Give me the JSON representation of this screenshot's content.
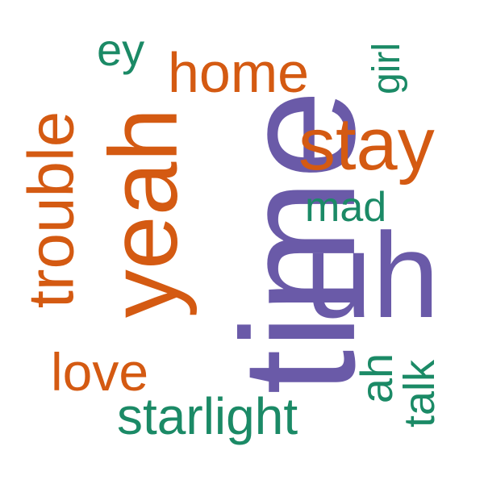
{
  "word_cloud": {
    "colors": {
      "purple": "#6a5aa8",
      "orange": "#d45a12",
      "green": "#1b8a66"
    },
    "words": [
      {
        "text": "time",
        "color": "purple",
        "orientation": "vertical"
      },
      {
        "text": "uh",
        "color": "purple",
        "orientation": "horizontal"
      },
      {
        "text": "yeah",
        "color": "orange",
        "orientation": "vertical"
      },
      {
        "text": "trouble",
        "color": "orange",
        "orientation": "vertical"
      },
      {
        "text": "stay",
        "color": "orange",
        "orientation": "horizontal"
      },
      {
        "text": "home",
        "color": "orange",
        "orientation": "horizontal"
      },
      {
        "text": "love",
        "color": "orange",
        "orientation": "horizontal"
      },
      {
        "text": "starlight",
        "color": "green",
        "orientation": "horizontal"
      },
      {
        "text": "ey",
        "color": "green",
        "orientation": "horizontal"
      },
      {
        "text": "mad",
        "color": "green",
        "orientation": "horizontal"
      },
      {
        "text": "girl",
        "color": "green",
        "orientation": "vertical"
      },
      {
        "text": "ah",
        "color": "green",
        "orientation": "vertical"
      },
      {
        "text": "talk",
        "color": "green",
        "orientation": "vertical"
      }
    ]
  }
}
